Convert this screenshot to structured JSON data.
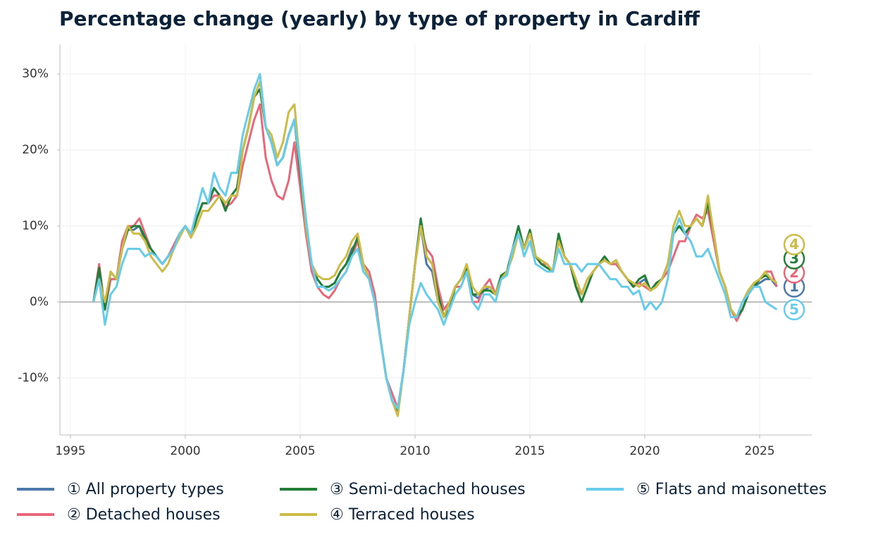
{
  "chart_data": {
    "type": "line",
    "title": "Percentage change (yearly) by type of property in Cardiff",
    "x": [
      1996,
      1996.25,
      1996.5,
      1996.75,
      1997,
      1997.25,
      1997.5,
      1997.75,
      1998,
      1998.25,
      1998.5,
      1998.75,
      1999,
      1999.25,
      1999.5,
      1999.75,
      2000,
      2000.25,
      2000.5,
      2000.75,
      2001,
      2001.25,
      2001.5,
      2001.75,
      2002,
      2002.25,
      2002.5,
      2002.75,
      2003,
      2003.25,
      2003.5,
      2003.75,
      2004,
      2004.25,
      2004.5,
      2004.75,
      2005,
      2005.25,
      2005.5,
      2005.75,
      2006,
      2006.25,
      2006.5,
      2006.75,
      2007,
      2007.25,
      2007.5,
      2007.75,
      2008,
      2008.25,
      2008.5,
      2008.75,
      2009,
      2009.25,
      2009.5,
      2009.75,
      2010,
      2010.25,
      2010.5,
      2010.75,
      2011,
      2011.25,
      2011.5,
      2011.75,
      2012,
      2012.25,
      2012.5,
      2012.75,
      2013,
      2013.25,
      2013.5,
      2013.75,
      2014,
      2014.25,
      2014.5,
      2014.75,
      2015,
      2015.25,
      2015.5,
      2015.75,
      2016,
      2016.25,
      2016.5,
      2016.75,
      2017,
      2017.25,
      2017.5,
      2017.75,
      2018,
      2018.25,
      2018.5,
      2018.75,
      2019,
      2019.25,
      2019.5,
      2019.75,
      2020,
      2020.25,
      2020.5,
      2020.75,
      2021,
      2021.25,
      2021.5,
      2021.75,
      2022,
      2022.25,
      2022.5,
      2022.75,
      2023,
      2023.25,
      2023.5,
      2023.75,
      2024,
      2024.25,
      2024.5,
      2024.75,
      2025,
      2025.25,
      2025.5,
      2025.75
    ],
    "series": [
      {
        "name": "① All property types",
        "end_label": "1",
        "color": "#4a78a8",
        "values": [
          0,
          4,
          -1,
          3,
          3,
          7,
          9.5,
          9.5,
          10,
          8,
          7,
          6,
          5,
          6,
          7,
          9,
          10,
          8.5,
          11,
          13,
          13,
          15,
          14,
          13,
          14,
          15,
          20,
          23,
          27,
          28,
          23,
          21,
          18,
          19,
          22,
          24,
          17,
          10,
          5,
          3,
          2,
          2,
          2.5,
          4,
          5,
          7,
          8,
          5,
          3,
          0,
          -5,
          -10,
          -13,
          -14,
          -9,
          -2,
          5,
          10,
          5,
          4,
          0,
          -2,
          0,
          2,
          3,
          4.5,
          1,
          0.5,
          1.5,
          2,
          1,
          3,
          4,
          7,
          9,
          7,
          9,
          6,
          5,
          5,
          4,
          8,
          6,
          5,
          3,
          1,
          3,
          4,
          5,
          5.5,
          5,
          5,
          4,
          3,
          2,
          2.5,
          3,
          1.5,
          2,
          3,
          5,
          9,
          10,
          9,
          10,
          11,
          10,
          13,
          9,
          4,
          2,
          -1,
          -2,
          -1,
          1,
          2,
          2.5,
          3,
          3,
          2
        ]
      },
      {
        "name": "② Detached houses",
        "end_label": "2",
        "color": "#e8677a",
        "values": [
          0,
          5,
          -1,
          3,
          3,
          8,
          10,
          10,
          11,
          9,
          7,
          6,
          5,
          6,
          7.5,
          9,
          10,
          9,
          11,
          13,
          13,
          14,
          14,
          12.5,
          13,
          14,
          18,
          21,
          24,
          26,
          19,
          16,
          14,
          13.5,
          16,
          21,
          15,
          9,
          4,
          2,
          1,
          0.5,
          1.5,
          3,
          4,
          6,
          8,
          5,
          4,
          1,
          -5,
          -10,
          -12,
          -14,
          -9,
          -2,
          5,
          10,
          7,
          6,
          2,
          -1,
          0,
          2,
          2,
          4,
          0,
          0,
          2,
          3,
          1,
          3,
          4,
          7,
          9,
          7,
          9,
          6,
          5,
          5,
          4,
          8,
          6,
          5,
          2,
          1,
          3,
          4,
          5,
          5.5,
          5,
          5,
          4,
          3,
          2,
          2.5,
          2,
          1.5,
          2,
          3,
          4,
          6,
          8,
          8,
          10,
          11.5,
          11,
          12,
          8,
          4,
          2,
          -1,
          -2.5,
          -1,
          1,
          2,
          3,
          4,
          4,
          2
        ]
      },
      {
        "name": "③ Semi-detached houses",
        "end_label": "3",
        "color": "#237f38",
        "values": [
          0,
          4.5,
          -1,
          4,
          3,
          7,
          9.5,
          10,
          10,
          8.5,
          7,
          6,
          5,
          6,
          7,
          9,
          10,
          8.5,
          11,
          13,
          13,
          15,
          14,
          12,
          14,
          15,
          20,
          23,
          27,
          28,
          23,
          21,
          18,
          19,
          22,
          24,
          17,
          10,
          5,
          3,
          2,
          2,
          2.5,
          4,
          5,
          6.5,
          8.5,
          5,
          3,
          0,
          -5,
          -10,
          -13,
          -14.5,
          -9,
          -2,
          5,
          11,
          6,
          5,
          1,
          -2,
          -1,
          2,
          3,
          4.5,
          1,
          1,
          1.5,
          1.5,
          1,
          3.5,
          4,
          7,
          10,
          7,
          9.5,
          6,
          5,
          4.5,
          4,
          9,
          6,
          5,
          2,
          0,
          2,
          4,
          5,
          6,
          5,
          5.5,
          4,
          3,
          2,
          3,
          3.5,
          1.5,
          2.5,
          3,
          5,
          9,
          10,
          9,
          10,
          11,
          10,
          13,
          9,
          4,
          2,
          -1,
          -2,
          -1,
          1,
          2,
          3,
          3.5,
          3,
          2.5
        ]
      },
      {
        "name": "④ Terraced houses",
        "end_label": "4",
        "color": "#cdbb46",
        "values": [
          0,
          3,
          0,
          4,
          3,
          7,
          10,
          9,
          9,
          8,
          6,
          5,
          4,
          5,
          7,
          8.5,
          10,
          8.5,
          10,
          12,
          12,
          13,
          14,
          13,
          14,
          14,
          20,
          23,
          27,
          29,
          23,
          22,
          19,
          21,
          25,
          26,
          18,
          10,
          5,
          3.5,
          3,
          3,
          3.5,
          5,
          6,
          8,
          9,
          5,
          3,
          0,
          -5,
          -10,
          -13,
          -15,
          -9,
          -2,
          5,
          10,
          6,
          5,
          0,
          -2,
          0,
          2,
          3,
          5,
          2,
          1,
          2,
          2,
          1,
          3,
          4,
          6,
          9,
          7,
          9,
          6,
          5.5,
          5,
          4,
          8,
          6,
          5,
          3,
          1,
          3,
          4,
          5,
          5.5,
          5,
          5.5,
          4,
          3,
          2.5,
          2,
          2.5,
          1.5,
          2,
          3,
          5,
          10,
          12,
          10,
          10,
          11,
          10,
          14,
          9,
          4,
          2,
          -1,
          -2,
          0,
          1.5,
          2.5,
          3,
          4,
          3,
          2.5
        ]
      },
      {
        "name": "⑤ Flats and maisonettes",
        "end_label": "5",
        "color": "#66ccea",
        "values": [
          0,
          3,
          -3,
          1,
          2,
          5,
          7,
          7,
          7,
          6,
          6.5,
          6,
          5,
          6,
          7,
          9,
          10,
          9,
          12,
          15,
          13,
          17,
          15,
          14,
          17,
          17,
          22,
          25,
          28,
          30,
          23,
          21,
          18,
          19,
          22,
          24,
          18,
          11,
          5,
          2,
          2,
          1.5,
          2,
          3,
          4,
          6,
          7,
          4,
          3,
          0,
          -5,
          -10,
          -13,
          -14,
          -9,
          -3,
          0,
          2.5,
          1,
          0,
          -1,
          -3,
          -1,
          1,
          2,
          4,
          0,
          -1,
          1,
          1,
          0,
          3,
          3.5,
          7,
          9,
          6,
          8,
          5,
          4.5,
          4,
          4,
          7,
          5,
          5,
          5,
          4,
          5,
          5,
          5,
          4,
          3,
          3,
          2,
          2,
          1,
          1.5,
          -1,
          0,
          -1,
          0,
          3,
          9,
          11,
          9,
          8,
          6,
          6,
          7,
          5,
          3,
          1,
          -2,
          -2,
          0,
          1,
          2,
          2,
          0,
          -0.5,
          -1
        ]
      }
    ],
    "xlim": [
      1994.54,
      2027.27
    ],
    "ylim": [
      -17.5,
      33.9
    ],
    "xticks": [
      1995,
      2000,
      2005,
      2010,
      2015,
      2020,
      2025
    ],
    "yticks": [
      {
        "value": -10,
        "label": "-10%"
      },
      {
        "value": 0,
        "label": "0%"
      },
      {
        "value": 10,
        "label": "10%"
      },
      {
        "value": 20,
        "label": "20%"
      },
      {
        "value": 30,
        "label": "30%"
      }
    ],
    "grid": true
  }
}
